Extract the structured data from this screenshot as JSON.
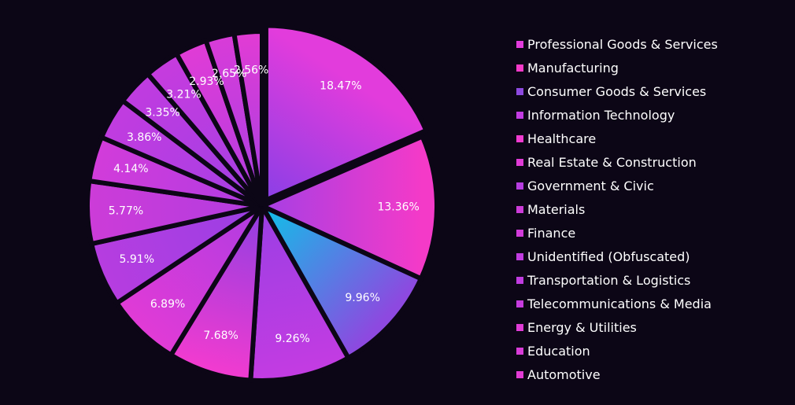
{
  "chart_data": {
    "type": "pie",
    "title": "",
    "legend_position": "right",
    "slices": [
      {
        "label": "Professional Goods & Services",
        "value": 18.47,
        "value_label": "18.47%",
        "color_start": "#8a3fe6",
        "color_end": "#e23cdc"
      },
      {
        "label": "Manufacturing",
        "value": 13.36,
        "value_label": "13.36%",
        "color_start": "#a63fe4",
        "color_end": "#f43ac8"
      },
      {
        "label": "Consumer Goods & Services",
        "value": 9.96,
        "value_label": "9.96%",
        "color_start": "#0ec2e8",
        "color_end": "#8d49e0"
      },
      {
        "label": "Information Technology",
        "value": 9.26,
        "value_label": "9.26%",
        "color_start": "#9a3fe4",
        "color_end": "#c23ce2"
      },
      {
        "label": "Healthcare",
        "value": 7.68,
        "value_label": "7.68%",
        "color_start": "#8e3fe2",
        "color_end": "#f03bd0"
      },
      {
        "label": "Real Estate & Construction",
        "value": 6.89,
        "value_label": "6.89%",
        "color_start": "#b03ce2",
        "color_end": "#e03bd6"
      },
      {
        "label": "Government & Civic",
        "value": 5.91,
        "value_label": "5.91%",
        "color_start": "#9a3fe4",
        "color_end": "#b63de0"
      },
      {
        "label": "Materials",
        "value": 5.77,
        "value_label": "5.77%",
        "color_start": "#b23ce0",
        "color_end": "#cc3cd8"
      },
      {
        "label": "Finance",
        "value": 4.14,
        "value_label": "4.14%",
        "color_start": "#b03ce2",
        "color_end": "#d23cda"
      },
      {
        "label": "Unidentified (Obfuscated)",
        "value": 3.86,
        "value_label": "3.86%",
        "color_start": "#a53fe4",
        "color_end": "#c13ce0"
      },
      {
        "label": "Transportation & Logistics",
        "value": 3.35,
        "value_label": "3.35%",
        "color_start": "#a03fe4",
        "color_end": "#c03ce0"
      },
      {
        "label": "Telecommunications & Media",
        "value": 3.21,
        "value_label": "3.21%",
        "color_start": "#a43fe4",
        "color_end": "#c63cde"
      },
      {
        "label": "Energy & Utilities",
        "value": 2.93,
        "value_label": "2.93%",
        "color_start": "#b03ce2",
        "color_end": "#e03cd6"
      },
      {
        "label": "Education",
        "value": 2.65,
        "value_label": "2.65%",
        "color_start": "#a83fe4",
        "color_end": "#d83cd8"
      },
      {
        "label": "Automotive",
        "value": 2.56,
        "value_label": "2.56%",
        "color_start": "#a23fe4",
        "color_end": "#e23cd4"
      }
    ]
  }
}
